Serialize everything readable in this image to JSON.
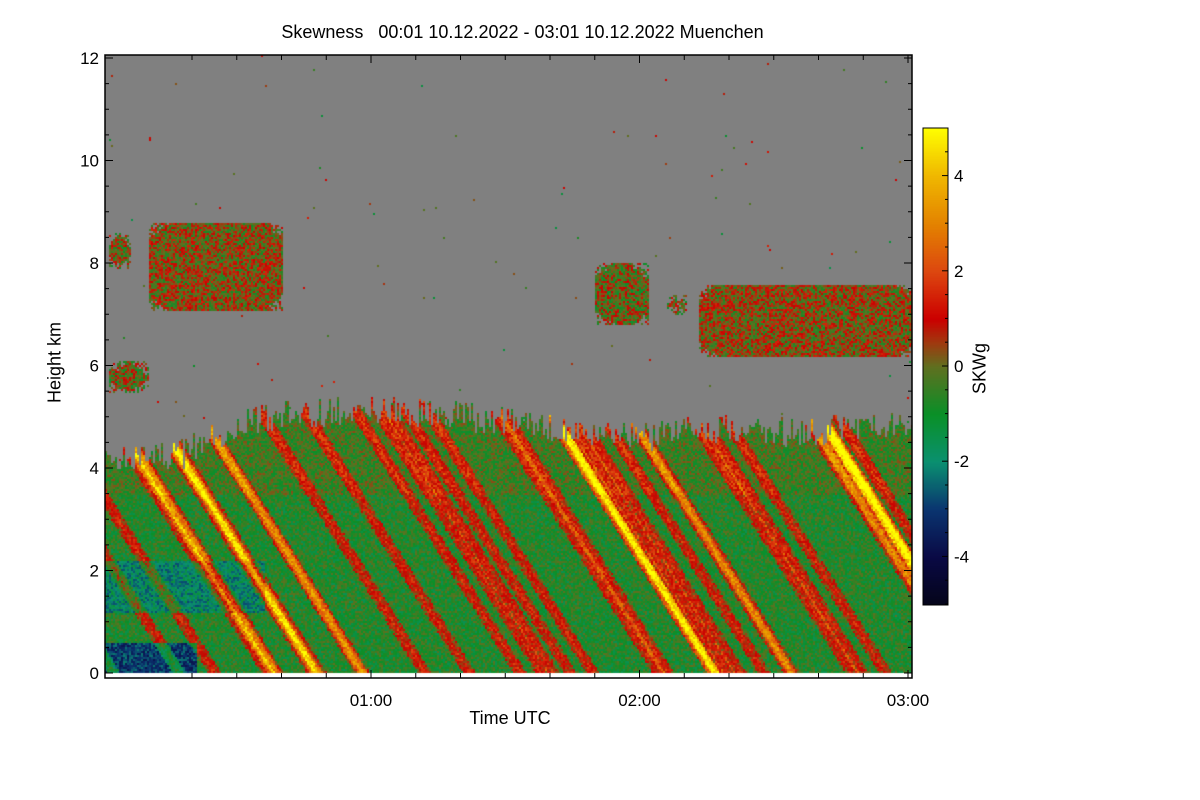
{
  "chart_data": {
    "type": "heatmap",
    "title": "Skewness   00:01 10.12.2022 - 03:01 10.12.2022 Muenchen",
    "xlabel": "Time UTC",
    "ylabel": "Height km",
    "xlim_hours": [
      0.0167,
      3.0167
    ],
    "xticks": [
      {
        "value": 1,
        "label": "01:00"
      },
      {
        "value": 2,
        "label": "02:00"
      },
      {
        "value": 3,
        "label": "03:00"
      }
    ],
    "xminor_step_hours": 0.1667,
    "ylim": [
      0,
      12
    ],
    "yticks": [
      {
        "value": 0,
        "label": "0"
      },
      {
        "value": 2,
        "label": "2"
      },
      {
        "value": 4,
        "label": "4"
      },
      {
        "value": 6,
        "label": "6"
      },
      {
        "value": 8,
        "label": "8"
      },
      {
        "value": 10,
        "label": "10"
      },
      {
        "value": 12,
        "label": "12"
      }
    ],
    "no_data_color": "#808080",
    "colorbar": {
      "label": "SKWg",
      "range": [
        -5,
        5
      ],
      "ticks": [
        {
          "value": 4,
          "label": "4"
        },
        {
          "value": 2,
          "label": "2"
        },
        {
          "value": 0,
          "label": "0"
        },
        {
          "value": -2,
          "label": "-2"
        },
        {
          "value": -4,
          "label": "-4"
        }
      ],
      "stops": [
        [
          -5,
          "#05051a"
        ],
        [
          -4,
          "#0a0a45"
        ],
        [
          -3,
          "#0a3570"
        ],
        [
          -2,
          "#0a9070"
        ],
        [
          -1,
          "#0a9028"
        ],
        [
          0,
          "#607020"
        ],
        [
          0.5,
          "#a03a10"
        ],
        [
          1,
          "#cc0000"
        ],
        [
          2,
          "#dd4810"
        ],
        [
          3,
          "#e48400"
        ],
        [
          4,
          "#f0b800"
        ],
        [
          5,
          "#ffff00"
        ]
      ]
    },
    "boundary_layer_top_km": [
      [
        0.0,
        4.2
      ],
      [
        0.3,
        4.3
      ],
      [
        0.5,
        4.9
      ],
      [
        0.75,
        5.1
      ],
      [
        1.0,
        5.15
      ],
      [
        1.3,
        5.1
      ],
      [
        1.5,
        4.9
      ],
      [
        1.75,
        4.8
      ],
      [
        2.0,
        4.6
      ],
      [
        2.3,
        4.8
      ],
      [
        2.6,
        4.7
      ],
      [
        3.02,
        4.9
      ]
    ],
    "cloud_patches": [
      {
        "t": [
          0.02,
          0.1
        ],
        "h": [
          7.9,
          8.6
        ],
        "mean_skw": 0.2
      },
      {
        "t": [
          0.17,
          0.67
        ],
        "h": [
          7.1,
          8.8
        ],
        "mean_skw": 0.3
      },
      {
        "t": [
          0.02,
          0.17
        ],
        "h": [
          5.5,
          6.1
        ],
        "mean_skw": 0.0
      },
      {
        "t": [
          1.83,
          2.03
        ],
        "h": [
          6.8,
          8.0
        ],
        "mean_skw": 0.0
      },
      {
        "t": [
          2.1,
          2.17
        ],
        "h": [
          7.0,
          7.4
        ],
        "mean_skw": 0.0
      },
      {
        "t": [
          2.22,
          3.02
        ],
        "h": [
          6.2,
          7.6
        ],
        "mean_skw": 0.3
      }
    ]
  }
}
